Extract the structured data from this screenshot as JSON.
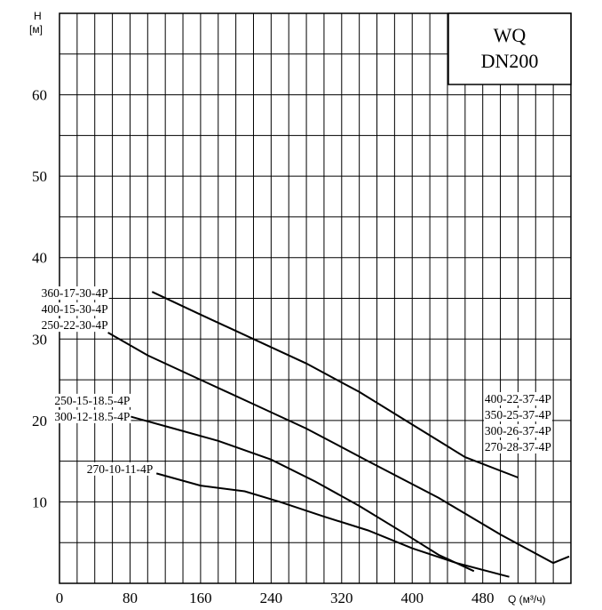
{
  "chart_data": {
    "type": "line",
    "title_lines": [
      "WQ",
      "DN200"
    ],
    "ylabel_lines": [
      "H",
      "[м]"
    ],
    "xlabel": "Q (м³/ч)",
    "xlim": [
      0,
      580
    ],
    "ylim": [
      0,
      70
    ],
    "x_ticks": [
      0,
      80,
      160,
      240,
      320,
      400,
      480
    ],
    "y_ticks": [
      10,
      20,
      30,
      40,
      50,
      60
    ],
    "grid": true,
    "series": [
      {
        "labels": [
          "270-10-11-4P"
        ],
        "label_anchor": [
          110,
          14
        ],
        "points": [
          [
            110,
            13.5
          ],
          [
            160,
            12
          ],
          [
            210,
            11.3
          ],
          [
            250,
            10
          ],
          [
            300,
            8.2
          ],
          [
            350,
            6.5
          ],
          [
            400,
            4.3
          ],
          [
            450,
            2.5
          ],
          [
            510,
            0.8
          ]
        ]
      },
      {
        "labels": [
          "250-15-18.5-4P",
          "300-12-18.5-4P"
        ],
        "label_anchor": [
          80,
          20
        ],
        "points": [
          [
            80,
            20.5
          ],
          [
            130,
            19
          ],
          [
            180,
            17.5
          ],
          [
            240,
            15.2
          ],
          [
            290,
            12.5
          ],
          [
            340,
            9.5
          ],
          [
            390,
            6.2
          ],
          [
            430,
            3.5
          ],
          [
            470,
            1.5
          ]
        ]
      },
      {
        "labels": [
          "360-17-30-4P",
          "400-15-30-4P",
          "250-22-30-4P"
        ],
        "label_anchor": [
          55,
          31
        ],
        "points": [
          [
            55,
            30.8
          ],
          [
            100,
            28
          ],
          [
            160,
            25
          ],
          [
            220,
            22
          ],
          [
            280,
            19
          ],
          [
            350,
            15
          ],
          [
            430,
            10.5
          ],
          [
            500,
            6
          ],
          [
            560,
            2.5
          ],
          [
            578,
            3.3
          ]
        ]
      },
      {
        "labels": [
          "400-22-37-4P",
          "350-25-37-4P",
          "300-26-37-4P",
          "270-28-37-4P"
        ],
        "label_anchor": [
          520,
          13
        ],
        "points": [
          [
            105,
            35.8
          ],
          [
            160,
            33
          ],
          [
            220,
            30
          ],
          [
            280,
            27
          ],
          [
            340,
            23.5
          ],
          [
            400,
            19.5
          ],
          [
            460,
            15.5
          ],
          [
            520,
            13
          ]
        ]
      }
    ]
  }
}
